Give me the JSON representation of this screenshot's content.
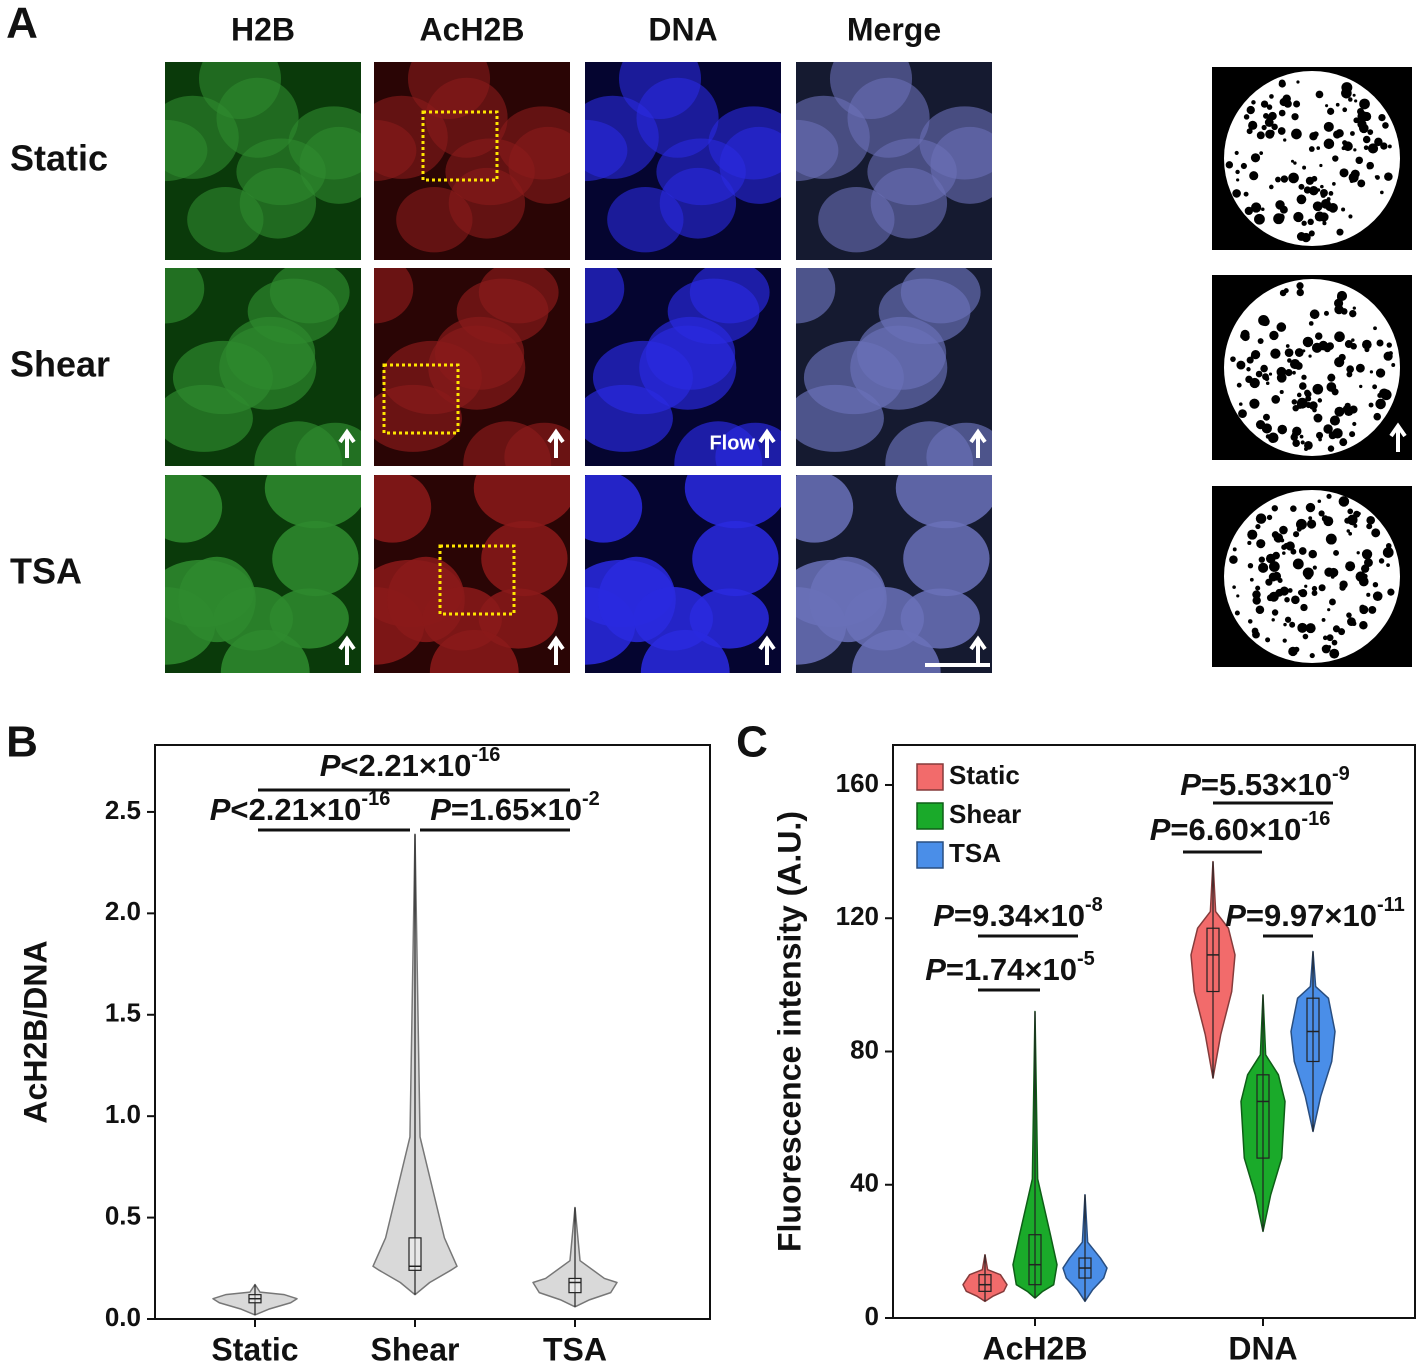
{
  "panel_a": {
    "label": "A",
    "columns": [
      "H2B",
      "AcH2B",
      "DNA",
      "Merge"
    ],
    "rows": [
      "Static",
      "Shear",
      "TSA"
    ],
    "flow_label": "Flow"
  },
  "chart_data": [
    {
      "type": "violin",
      "panel_label": "B",
      "ylabel": "AcH2B/DNA",
      "categories": [
        "Static",
        "Shear",
        "TSA"
      ],
      "color": "#d9d9d9",
      "ylim": [
        0,
        2.83
      ],
      "yticks": [
        {
          "value": 0,
          "label": "0.0"
        },
        0.5,
        {
          "value": 1,
          "label": "1.0"
        },
        1.5,
        {
          "value": 2,
          "label": "2.0"
        },
        2.5
      ],
      "values": [
        {
          "min": 0.02,
          "q1": 0.08,
          "median": 0.1,
          "q3": 0.12,
          "max": 0.17
        },
        {
          "min": 0.12,
          "q1": 0.24,
          "median": 0.26,
          "q3": 0.4,
          "max": 2.39
        },
        {
          "min": 0.06,
          "q1": 0.13,
          "median": 0.18,
          "q3": 0.2,
          "max": 0.55
        }
      ],
      "annotations": [
        {
          "italic": "P",
          "text": "<2.21×10",
          "sup": "-16"
        },
        {
          "italic": "P",
          "text": "<2.21×10",
          "sup": "-16"
        },
        {
          "italic": "P",
          "text": "=1.65×10",
          "sup": "-2"
        }
      ]
    },
    {
      "type": "violin",
      "panel_label": "C",
      "ylabel": "Fluorescence intensity (A.U.)",
      "categories": [
        "AcH2B",
        "DNA"
      ],
      "legend": "upper left",
      "ylim": [
        0,
        172
      ],
      "yticks": [
        0,
        40,
        80,
        120,
        160
      ],
      "series": [
        {
          "name": "Static",
          "color": "#f26b6b",
          "values": [
            {
              "min": 5,
              "q1": 8,
              "median": 10,
              "q3": 13,
              "max": 19
            },
            {
              "min": 72,
              "q1": 98,
              "median": 109,
              "q3": 117,
              "max": 137
            }
          ]
        },
        {
          "name": "Shear",
          "color": "#1aaa2a",
          "values": [
            {
              "min": 6,
              "q1": 10,
              "median": 16,
              "q3": 25,
              "max": 92
            },
            {
              "min": 26,
              "q1": 48,
              "median": 65,
              "q3": 73,
              "max": 97
            }
          ]
        },
        {
          "name": "TSA",
          "color": "#4a8ee8",
          "values": [
            {
              "min": 5,
              "q1": 12,
              "median": 15,
              "q3": 18,
              "max": 37
            },
            {
              "min": 56,
              "q1": 77,
              "median": 86,
              "q3": 96,
              "max": 110
            }
          ]
        }
      ],
      "annotations": [
        {
          "italic": "P",
          "text": "=9.34×10",
          "sup": "-8"
        },
        {
          "italic": "P",
          "text": "=1.74×10",
          "sup": "-5"
        },
        {
          "italic": "P",
          "text": "=5.53×10",
          "sup": "-9"
        },
        {
          "italic": "P",
          "text": "=6.60×10",
          "sup": "-16"
        },
        {
          "italic": "P",
          "text": "=9.97×10",
          "sup": "-11"
        }
      ]
    }
  ]
}
